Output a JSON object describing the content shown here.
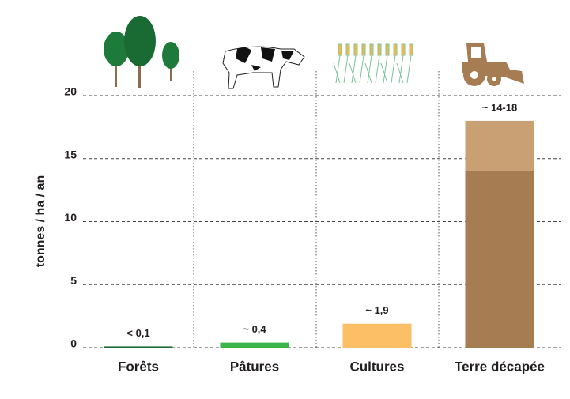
{
  "chart_data": {
    "type": "bar",
    "y_label": "tonnes / ha / an",
    "categories": [
      "Forêts",
      "Pâtures",
      "Cultures",
      "Terre décapée"
    ],
    "values": [
      0.1,
      0.4,
      1.9,
      14
    ],
    "upper_values": [
      null,
      null,
      null,
      18
    ],
    "value_labels": [
      "< 0,1",
      "~ 0,4",
      "~ 1,9",
      "~ 14-18"
    ],
    "colors": [
      "#1e6b35",
      "#3bb54a",
      "#fdbf66",
      "#a67c52"
    ],
    "upper_color": "#c9a073",
    "ylim": [
      0,
      20
    ],
    "yticks": [
      0,
      5,
      10,
      15,
      20
    ],
    "grid": true
  }
}
